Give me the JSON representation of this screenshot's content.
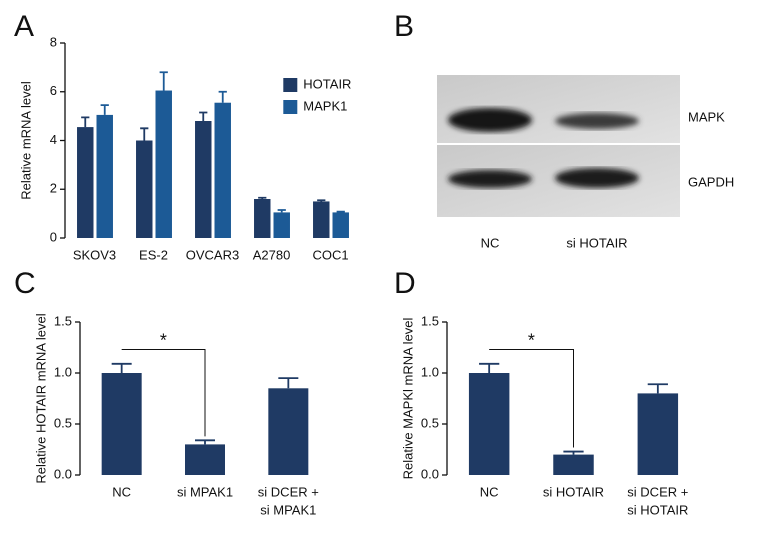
{
  "chart_data": [
    {
      "type": "bar",
      "panel": "A",
      "ylabel": "Relative mRNA level",
      "categories": [
        "SKOV3",
        "ES-2",
        "OVCAR3",
        "A2780",
        "COC1"
      ],
      "series": [
        {
          "name": "HOTAIR",
          "color": "#1f3a64",
          "values": [
            4.55,
            4.0,
            4.8,
            1.6,
            1.5
          ],
          "errors": [
            0.4,
            0.5,
            0.35,
            0.05,
            0.05
          ]
        },
        {
          "name": "MAPK1",
          "color": "#1c5a96",
          "values": [
            5.05,
            6.05,
            5.55,
            1.05,
            1.05
          ],
          "errors": [
            0.4,
            0.75,
            0.45,
            0.1,
            0.03
          ]
        }
      ],
      "ylim": [
        0,
        8
      ],
      "yticks": [
        0,
        2,
        4,
        6,
        8
      ]
    },
    {
      "type": "blot",
      "panel": "B",
      "bands": [
        "MAPK",
        "GAPDH"
      ],
      "lanes": [
        "NC",
        "si HOTAIR"
      ]
    },
    {
      "type": "bar",
      "panel": "C",
      "ylabel": "Relative HOTAIR mRNA level",
      "annotation": "*",
      "categories": [
        "NC",
        "si MPAK1",
        [
          "si DCER +",
          "si MPAK1"
        ]
      ],
      "series": [
        {
          "color": "#1f3a64",
          "values": [
            1.0,
            0.3,
            0.85
          ],
          "errors": [
            0.09,
            0.04,
            0.1
          ]
        }
      ],
      "ylim": [
        0,
        1.5
      ],
      "yticks": [
        {
          "value": 0,
          "label": "0.0"
        },
        0.5,
        {
          "value": 1,
          "label": "1.0"
        },
        1.5
      ]
    },
    {
      "type": "bar",
      "panel": "D",
      "ylabel": "Relative MAPKl mRNA level",
      "annotation": "*",
      "categories": [
        "NC",
        "si HOTAIR",
        [
          "si DCER +",
          "si HOTAIR"
        ]
      ],
      "series": [
        {
          "color": "#1f3a64",
          "values": [
            1.0,
            0.2,
            0.8
          ],
          "errors": [
            0.09,
            0.03,
            0.09
          ]
        }
      ],
      "ylim": [
        0,
        1.5
      ],
      "yticks": [
        {
          "value": 0,
          "label": "0.0"
        },
        0.5,
        {
          "value": 1,
          "label": "1.0"
        },
        1.5
      ]
    }
  ]
}
